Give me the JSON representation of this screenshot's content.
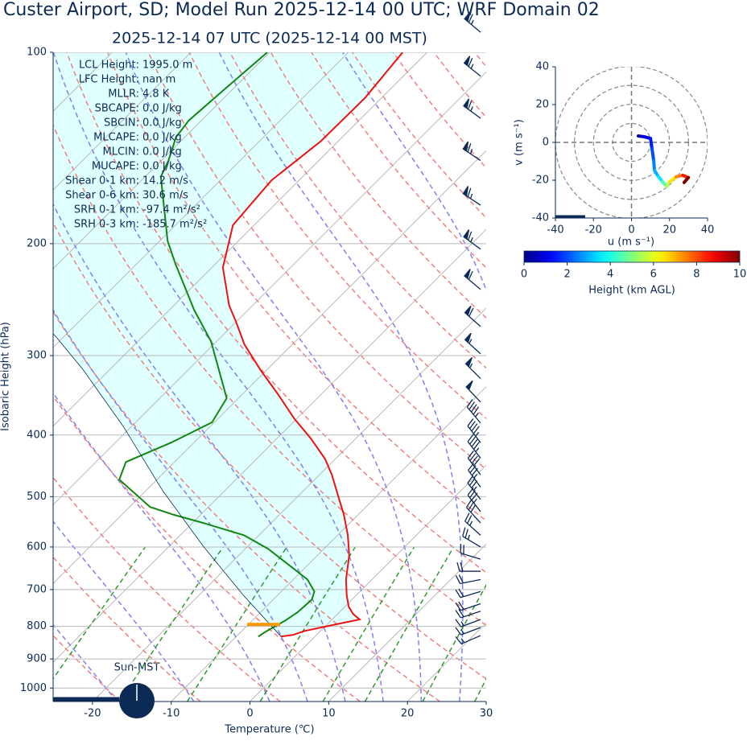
{
  "chart_data": [
    {
      "type": "skewt",
      "title": "Custer Airport, SD; Model Run 2025-12-14 00 UTC; WRF Domain 02",
      "subtitle": "2025-12-14 07 UTC  (2025-12-14 00 MST)",
      "xlabel": "Temperature (℃)",
      "ylabel": "Isobaric Height (hPa)",
      "xlim": [
        -25,
        30
      ],
      "ylim": [
        1050,
        100
      ],
      "yscale": "log",
      "xticks": [
        -20,
        -10,
        0,
        10,
        20,
        30
      ],
      "yticks": [
        100,
        200,
        300,
        400,
        500,
        600,
        700,
        800,
        900,
        1000
      ],
      "grid": true,
      "profiles": [
        {
          "color": "#ee1111",
          "pressure": [
            830,
            825,
            813,
            794,
            780,
            765,
            745,
            715,
            675,
            618,
            575,
            534,
            500,
            462,
            436,
            405,
            377,
            345,
            316,
            288,
            265,
            250,
            218,
            187,
            159,
            138,
            118,
            100
          ],
          "values": [
            -4.3,
            -3.0,
            -2.0,
            1.1,
            3.5,
            2.0,
            0.5,
            -1.2,
            -3.3,
            -6.0,
            -8.7,
            -11.8,
            -14.8,
            -18.4,
            -21.3,
            -25.7,
            -30.3,
            -35.5,
            -40.8,
            -46.1,
            -50.1,
            -53.0,
            -58.6,
            -62.7,
            -63.5,
            -62.2,
            -62.1,
            -63.1
          ]
        },
        {
          "color": "#118811",
          "pressure": [
            830,
            816,
            783,
            760,
            726,
            705,
            675,
            646,
            604,
            575,
            550,
            534,
            519,
            470,
            441,
            411,
            382,
            350,
            285,
            254,
            229,
            216,
            198,
            157,
            148,
            136,
            128,
            116,
            100
          ],
          "values": [
            -7.2,
            -6.9,
            -5.8,
            -5.3,
            -5.1,
            -5.8,
            -8.2,
            -11.7,
            -17.1,
            -21.9,
            -28.6,
            -33.4,
            -37.4,
            -44.8,
            -46.2,
            -42.9,
            -40.3,
            -41.5,
            -50.7,
            -56.9,
            -62.0,
            -64.9,
            -69.0,
            -78.0,
            -79.1,
            -81.1,
            -81.6,
            -81.1,
            -80.3
          ]
        },
        {
          "color": "#0b2a55",
          "pressure": [
            830,
            715,
            600,
            490,
            388,
            316,
            281,
            200,
            100
          ],
          "values": [
            -4.3,
            -14.3,
            -25.5,
            -37.8,
            -51.0,
            -63.3,
            -70.8,
            -94,
            -126
          ]
        }
      ],
      "cin_fill_color": "#e0ffff",
      "isotherms": [
        -110,
        -100,
        -90,
        -80,
        -70,
        -60,
        -50,
        -40,
        -30,
        -20,
        -10,
        0,
        10,
        20,
        30
      ],
      "dry_adiabats": [
        -30,
        -20,
        -10,
        0,
        10,
        20,
        30,
        40,
        50,
        60,
        70,
        80,
        90,
        100,
        110,
        120,
        130,
        140,
        150,
        160,
        170,
        180,
        190
      ],
      "moist_adiabats": [
        -30,
        -20,
        -10,
        0,
        5,
        10,
        15,
        20,
        25,
        30,
        35
      ],
      "mixing_ratios": [
        0.4,
        1,
        2,
        4,
        7,
        10,
        16,
        24,
        32
      ],
      "surface_marker": {
        "pressure": 794,
        "color": "#ff9900"
      },
      "wind_barbs": {
        "pressure": [
          93,
          109,
          127,
          148,
          174,
          204,
          236,
          270,
          298,
          326,
          355,
          383,
          411,
          435,
          462,
          483,
          505,
          528,
          550,
          575,
          600,
          627,
          655,
          675,
          705,
          737,
          757,
          780,
          803,
          827
        ],
        "u": [
          50,
          50,
          52,
          54,
          54,
          52,
          48,
          45,
          42,
          38,
          34,
          30,
          28,
          26,
          24,
          22,
          22,
          20,
          20,
          20,
          20,
          20,
          20,
          20,
          20,
          18,
          18,
          16,
          16,
          14
        ],
        "v": [
          -42,
          -40,
          -38,
          -36,
          -36,
          -38,
          -40,
          -40,
          -38,
          -38,
          -36,
          -36,
          -36,
          -34,
          -32,
          -30,
          -28,
          -26,
          -22,
          -18,
          -12,
          -6,
          0,
          4,
          6,
          6,
          6,
          6,
          6,
          6
        ]
      },
      "annotations": [
        {
          "label": "LCL Height:",
          "value": "1995.0 m"
        },
        {
          "label": "LFC Height:",
          "value": "nan m"
        },
        {
          "label": "MLLR:",
          "value": "4.8 K"
        },
        {
          "label": "SBCAPE:",
          "value": "0.0 J/kg"
        },
        {
          "label": "SBCIN:",
          "value": "0.0 J/kg"
        },
        {
          "label": "MLCAPE:",
          "value": "0.0 J/kg"
        },
        {
          "label": "MLCIN:",
          "value": "0.0 J/kg"
        },
        {
          "label": "MUCAPE:",
          "value": "0.0 J/kg"
        },
        {
          "label": "Shear 0-1 km:",
          "value": "14.2 m/s"
        },
        {
          "label": "Shear 0-6 km:",
          "value": "30.6 m/s"
        },
        {
          "label": "SRH 0-1 km:",
          "value": "-97.4 m²/s²"
        },
        {
          "label": "SRH 0-3 km:",
          "value": "-185.7 m²/s²"
        }
      ],
      "clock_label": "Sun-MST"
    },
    {
      "type": "hodograph",
      "xlabel": "u (m s⁻¹)",
      "ylabel": "v (m s⁻¹)",
      "xlim": [
        -40,
        40
      ],
      "ylim": [
        -40,
        40
      ],
      "xticks": [
        -40,
        -20,
        0,
        20,
        40
      ],
      "yticks": [
        -40,
        -20,
        0,
        20,
        40
      ],
      "rings": [
        10,
        20,
        30,
        40
      ],
      "u": [
        3.6,
        6.6,
        10.0,
        10.8,
        11.7,
        12.1,
        14.2,
        16.3,
        18.4,
        20.1,
        23.5,
        26.9,
        29.9,
        27.7
      ],
      "v": [
        3.4,
        3.0,
        2.1,
        -3.4,
        -9.7,
        -14.8,
        -18.2,
        -20.8,
        -23.3,
        -20.8,
        -18.2,
        -17.4,
        -18.6,
        -21.2
      ],
      "height": [
        0,
        0.5,
        1,
        1.5,
        2,
        2.5,
        3,
        3.5,
        4.5,
        5.5,
        6.5,
        7.5,
        8.5,
        10
      ],
      "colorbar": {
        "label": "Height (km AGL)",
        "lim": [
          0,
          10
        ],
        "ticks": [
          0,
          2,
          4,
          6,
          8,
          10
        ],
        "cmap": "jet"
      }
    }
  ]
}
